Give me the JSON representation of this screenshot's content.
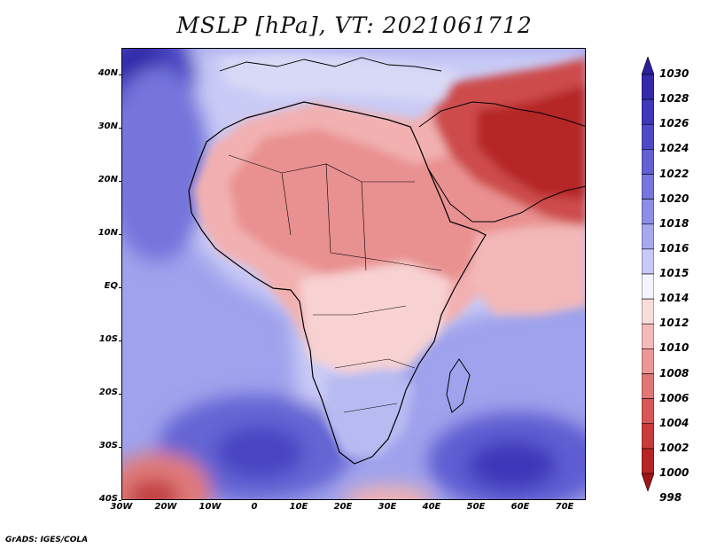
{
  "title": "MSLP [hPa], VT: 2021061712",
  "credit": "GrADS: IGES/COLA",
  "lat_labels": [
    "40N",
    "30N",
    "20N",
    "10N",
    "EQ",
    "10S",
    "20S",
    "30S",
    "40S"
  ],
  "lon_labels": [
    "30W",
    "20W",
    "10W",
    "0",
    "10E",
    "20E",
    "30E",
    "40E",
    "50E",
    "60E",
    "70E"
  ],
  "colorbar": {
    "labels": [
      "1030",
      "1028",
      "1026",
      "1024",
      "1022",
      "1020",
      "1018",
      "1016",
      "1015",
      "1014",
      "1012",
      "1010",
      "1008",
      "1006",
      "1004",
      "1002",
      "1000",
      "998"
    ],
    "colors": [
      "#2a1d9e",
      "#3429ac",
      "#3f38bb",
      "#4f4ac8",
      "#6160d4",
      "#7676de",
      "#8d8fe6",
      "#a7a9ef",
      "#c7c9f6",
      "#f4f4ff",
      "#fbdcdc",
      "#f4b9b9",
      "#ec9797",
      "#e37676",
      "#d95757",
      "#cc3b3b",
      "#b82525",
      "#a01616"
    ]
  },
  "colors": {
    "high_pressure": "#3b34b8",
    "low_pressure": "#b31d1d",
    "neutral": "#f6f4fb"
  }
}
